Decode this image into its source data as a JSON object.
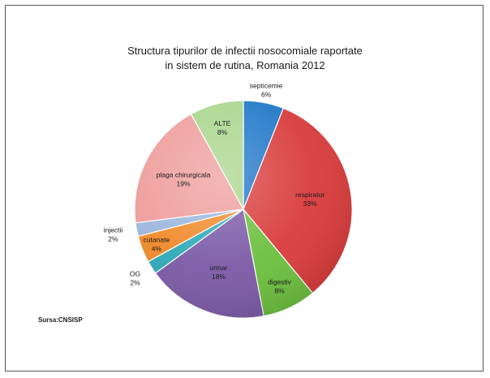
{
  "chart_data": {
    "type": "pie",
    "title": [
      "Structura tipurilor de infectii nosocomiale raportate",
      "in sistem de rutina, Romania 2012"
    ],
    "slices": [
      {
        "name": "septicemie",
        "value": 6,
        "label": "6%",
        "color": "#1f77c8"
      },
      {
        "name": "respirator",
        "value": 33,
        "label": "33%",
        "color": "#d93b3b"
      },
      {
        "name": "digestiv",
        "value": 8,
        "label": "8%",
        "color": "#6cbf3e"
      },
      {
        "name": "urinar",
        "value": 18,
        "label": "18%",
        "color": "#7b5aa6"
      },
      {
        "name": "OG",
        "value": 2,
        "label": "2%",
        "color": "#2ea9b8"
      },
      {
        "name": "cutanate",
        "value": 4,
        "label": "4%",
        "color": "#f0892a"
      },
      {
        "name": "injectii",
        "value": 2,
        "label": "2%",
        "color": "#9bb6dc"
      },
      {
        "name": "plaga chirurgicala",
        "value": 19,
        "label": "19%",
        "color": "#ee9c9a"
      },
      {
        "name": "ALTE",
        "value": 8,
        "label": "8%",
        "color": "#a9d58c"
      }
    ]
  },
  "source": "Sursa:CNSISP"
}
